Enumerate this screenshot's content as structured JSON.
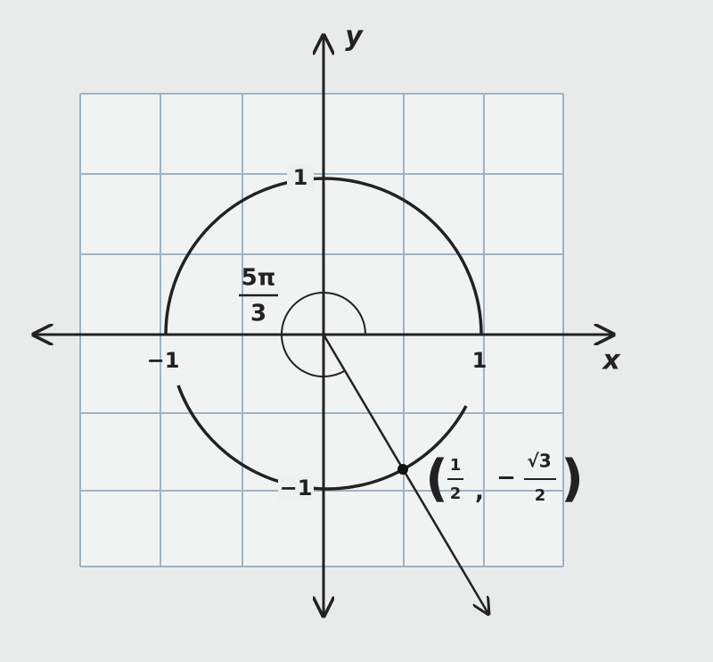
{
  "axes": {
    "x_label": "x",
    "y_label": "y"
  },
  "ticks": {
    "x_pos": "1",
    "x_neg": "−1",
    "y_pos": "1",
    "y_neg": "−1"
  },
  "angle": {
    "numerator": "5π",
    "denominator": "3"
  },
  "point": {
    "open": "(",
    "x_numerator": "1",
    "x_denominator": "2",
    "comma": ",",
    "sign": "−",
    "y_numerator": "√3",
    "y_denominator": "2",
    "close": ")"
  }
}
